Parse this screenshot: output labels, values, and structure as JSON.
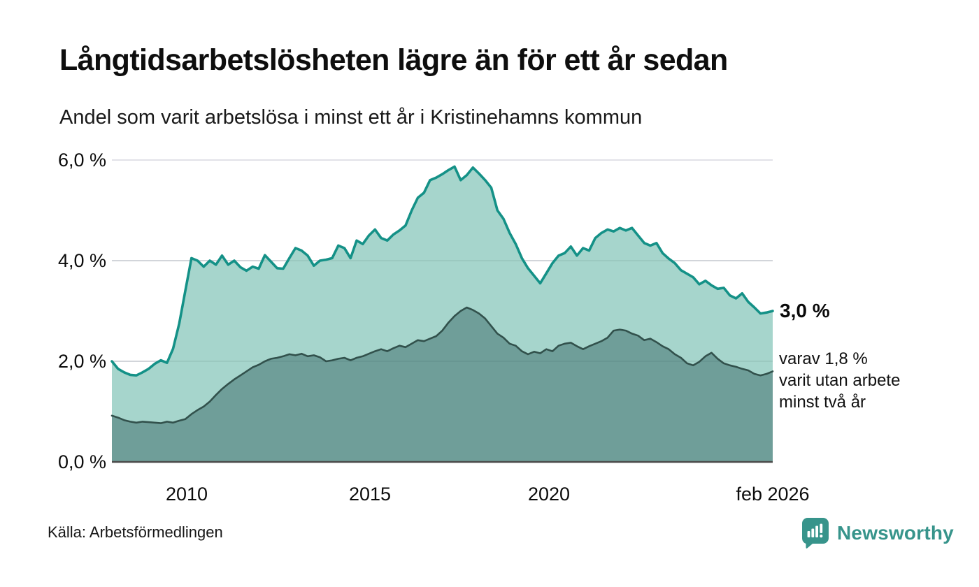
{
  "header": {
    "title": "Långtidsarbetslösheten lägre än för ett år sedan",
    "subtitle": "Andel som varit arbetslösa i minst ett år i Kristinehamns kommun"
  },
  "chart_data": {
    "type": "area",
    "title": "Långtidsarbetslösheten lägre än för ett år sedan",
    "ylabel": "",
    "xlabel": "",
    "unit": "%",
    "ylim": [
      0,
      6
    ],
    "grid": "horizontal",
    "x_ticks": [
      "2010",
      "2015",
      "2020",
      "feb 2026"
    ],
    "y_ticks": [
      {
        "label": "6,0 %",
        "value": 6.0
      },
      {
        "label": "4,0 %",
        "value": 4.0
      },
      {
        "label": "2,0 %",
        "value": 2.0
      },
      {
        "label": "0,0 %",
        "value": 0.0
      }
    ],
    "series": [
      {
        "name": "arbetslösa minst ett år",
        "end_value": 3.0,
        "values": [
          2.0,
          1.85,
          1.78,
          1.73,
          1.72,
          1.78,
          1.85,
          1.95,
          2.02,
          1.97,
          2.25,
          2.75,
          3.4,
          4.05,
          4.0,
          3.88,
          4.0,
          3.92,
          4.1,
          3.92,
          4.0,
          3.87,
          3.8,
          3.88,
          3.84,
          4.11,
          3.98,
          3.85,
          3.84,
          4.05,
          4.25,
          4.2,
          4.1,
          3.9,
          4.0,
          4.02,
          4.05,
          4.3,
          4.25,
          4.05,
          4.4,
          4.33,
          4.5,
          4.62,
          4.45,
          4.4,
          4.52,
          4.6,
          4.7,
          5.0,
          5.25,
          5.35,
          5.6,
          5.65,
          5.72,
          5.8,
          5.87,
          5.6,
          5.7,
          5.85,
          5.73,
          5.6,
          5.45,
          5.0,
          4.83,
          4.55,
          4.33,
          4.05,
          3.85,
          3.7,
          3.55,
          3.75,
          3.95,
          4.1,
          4.15,
          4.28,
          4.1,
          4.25,
          4.2,
          4.45,
          4.55,
          4.62,
          4.58,
          4.65,
          4.6,
          4.65,
          4.5,
          4.35,
          4.3,
          4.35,
          4.15,
          4.04,
          3.95,
          3.81,
          3.74,
          3.67,
          3.53,
          3.6,
          3.51,
          3.44,
          3.46,
          3.31,
          3.25,
          3.35,
          3.18,
          3.07,
          2.95,
          2.97,
          3.0
        ]
      },
      {
        "name": "arbetslösa minst två år",
        "end_value": 1.8,
        "values": [
          0.92,
          0.88,
          0.83,
          0.8,
          0.78,
          0.8,
          0.79,
          0.78,
          0.77,
          0.8,
          0.78,
          0.82,
          0.85,
          0.95,
          1.03,
          1.1,
          1.2,
          1.33,
          1.45,
          1.55,
          1.64,
          1.72,
          1.8,
          1.88,
          1.93,
          2.0,
          2.05,
          2.07,
          2.1,
          2.14,
          2.12,
          2.15,
          2.1,
          2.12,
          2.08,
          2.0,
          2.02,
          2.05,
          2.07,
          2.02,
          2.07,
          2.1,
          2.15,
          2.2,
          2.24,
          2.2,
          2.26,
          2.31,
          2.28,
          2.35,
          2.42,
          2.4,
          2.45,
          2.5,
          2.61,
          2.77,
          2.9,
          3.0,
          3.07,
          3.02,
          2.95,
          2.85,
          2.7,
          2.55,
          2.47,
          2.35,
          2.31,
          2.2,
          2.14,
          2.19,
          2.16,
          2.24,
          2.2,
          2.31,
          2.35,
          2.37,
          2.3,
          2.24,
          2.3,
          2.35,
          2.4,
          2.47,
          2.61,
          2.63,
          2.61,
          2.55,
          2.51,
          2.42,
          2.45,
          2.38,
          2.3,
          2.24,
          2.14,
          2.07,
          1.96,
          1.92,
          1.99,
          2.1,
          2.17,
          2.05,
          1.96,
          1.92,
          1.89,
          1.85,
          1.82,
          1.75,
          1.72,
          1.75,
          1.8
        ]
      }
    ]
  },
  "annotations": {
    "end_value_label": "3,0 %",
    "secondary_note": "varav 1,8 %\nvarit utan arbete\nminst två år"
  },
  "footer": {
    "source": "Källa: Arbetsförmedlingen",
    "brand": "Newsworthy"
  },
  "colors": {
    "line_primary": "#149187",
    "fill_primary": "#a6d5cc",
    "line_secondary": "#32514c",
    "fill_secondary": "#6f9e99",
    "gridline": "#e2e2e8",
    "zero_axis": "#4a4a4a",
    "brand_teal": "#37948b",
    "text": "#0e0e0e"
  }
}
